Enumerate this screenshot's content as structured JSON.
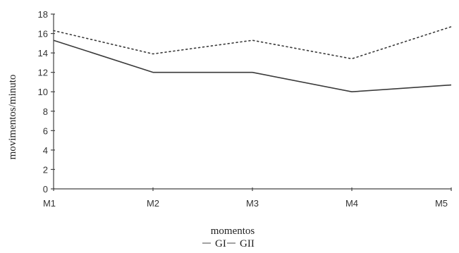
{
  "chart_data": {
    "type": "line",
    "categories": [
      "M1",
      "M2",
      "M3",
      "M4",
      "M5"
    ],
    "xlabel": "momentos",
    "ylabel": "movimentos/minuto",
    "ylim": [
      0,
      18
    ],
    "yticks": [
      0,
      2,
      4,
      6,
      8,
      10,
      12,
      14,
      16,
      18
    ],
    "grid": false,
    "legend_position": "bottom",
    "series": [
      {
        "name": "GI",
        "values": [
          15.3,
          12.0,
          12.0,
          10.0,
          10.7
        ],
        "style": "solid",
        "color": "#3a3a3a"
      },
      {
        "name": "GII",
        "values": [
          16.3,
          13.9,
          15.3,
          13.4,
          16.7
        ],
        "style": "dotted",
        "color": "#3a3a3a"
      }
    ]
  }
}
